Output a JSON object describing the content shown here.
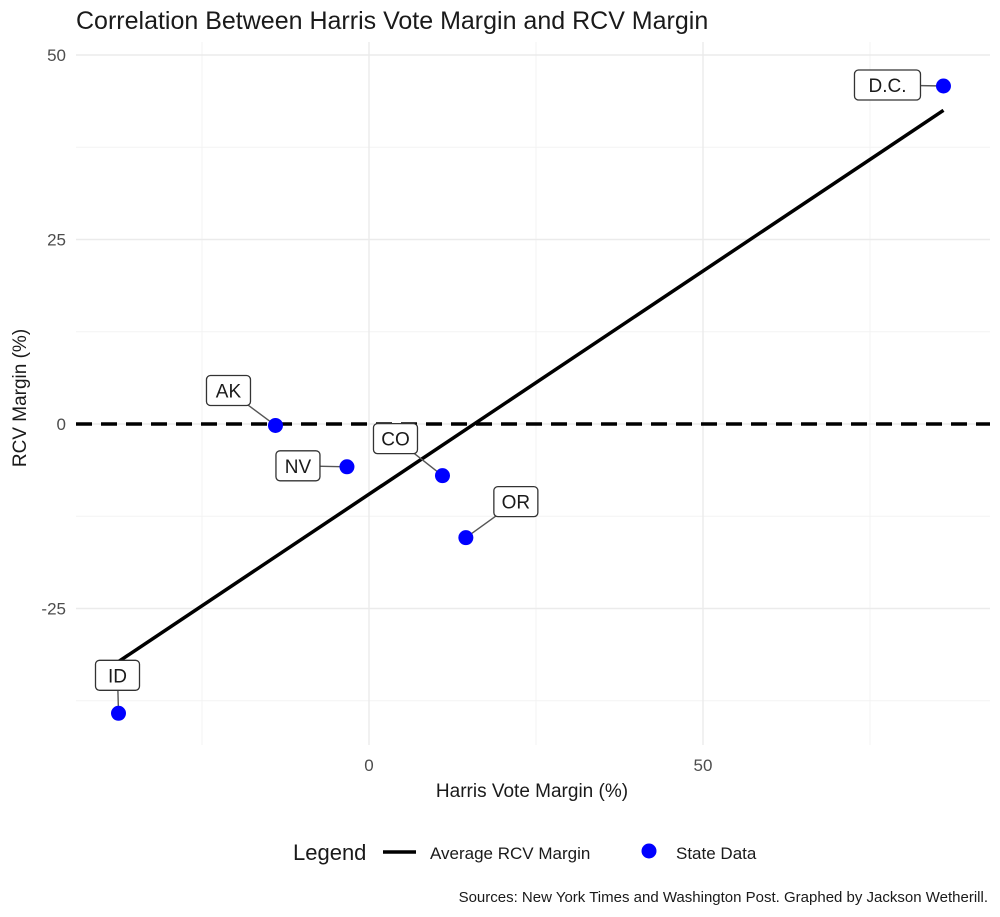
{
  "chart_data": {
    "type": "scatter",
    "title": "Correlation Between Harris Vote Margin and RCV Margin",
    "xlabel": "Harris Vote Margin (%)",
    "ylabel": "RCV Margin (%)",
    "xlim": [
      -44,
      93
    ],
    "ylim": [
      -44,
      52
    ],
    "x_ticks": [
      0,
      50
    ],
    "x_tick_labels": [
      "0",
      "50"
    ],
    "y_ticks": [
      -25,
      0,
      25,
      50
    ],
    "y_tick_labels": [
      "-25",
      "0",
      "25",
      "50"
    ],
    "grid": true,
    "reference_line": {
      "y": 0,
      "style": "dashed",
      "color": "#000000"
    },
    "fit_line": {
      "name": "Average RCV Margin",
      "x": [
        -38,
        86
      ],
      "y": [
        -32.5,
        42.5
      ],
      "color": "#000000"
    },
    "series": [
      {
        "name": "State Data",
        "color": "#0000ff",
        "points": [
          {
            "label": "D.C.",
            "x": 86,
            "y": 45.8
          },
          {
            "label": "AK",
            "x": -14,
            "y": -0.2
          },
          {
            "label": "NV",
            "x": -3.3,
            "y": -5.8
          },
          {
            "label": "CO",
            "x": 11,
            "y": -7
          },
          {
            "label": "OR",
            "x": 14.5,
            "y": -15.4
          },
          {
            "label": "ID",
            "x": -37.5,
            "y": -39.2
          }
        ]
      }
    ],
    "legend": {
      "title": "Legend",
      "position": "bottom",
      "items": [
        {
          "label": "Average RCV Margin",
          "kind": "line",
          "color": "#000000"
        },
        {
          "label": "State Data",
          "kind": "point",
          "color": "#0000ff"
        }
      ]
    },
    "caption": "Sources: New York Times and Washington Post. Graphed by Jackson Wetherill."
  }
}
